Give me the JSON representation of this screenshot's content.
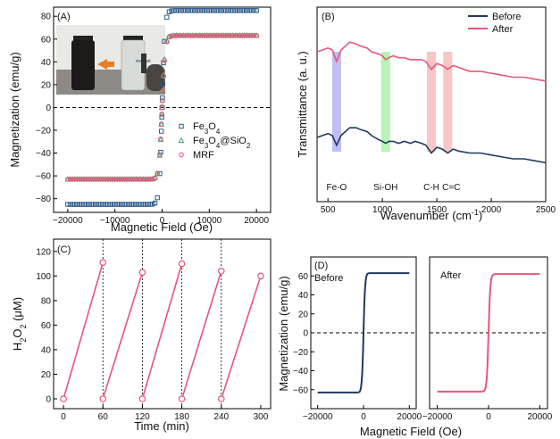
{
  "chart_data": [
    {
      "panel": "(A)",
      "type": "scatter",
      "xlabel": "Magnetic Field (Oe)",
      "ylabel": "Magnetization (emu/g)",
      "xlim": [
        -23000,
        23000
      ],
      "ylim": [
        -92,
        88
      ],
      "xticks": [
        -20000,
        -10000,
        0,
        10000,
        20000
      ],
      "yticks": [
        -80,
        -60,
        -40,
        -20,
        0,
        20,
        40,
        60,
        80
      ],
      "legend_position": "center-right",
      "inset": {
        "description_label": "magnet"
      },
      "series": [
        {
          "name": "Fe3O4",
          "marker": "square",
          "color": "#2f5d8a",
          "saturation": 85,
          "half_field": 300
        },
        {
          "name": "Fe3O4@SiO2",
          "marker": "triangle",
          "color": "#3cb371",
          "saturation": 63,
          "half_field": 300
        },
        {
          "name": "MRF",
          "marker": "circle",
          "color": "#e8557a",
          "saturation": 63,
          "half_field": 300
        }
      ]
    },
    {
      "panel": "(B)",
      "type": "line",
      "xlabel": "Wavenumber (cm-1)",
      "ylabel": "Transmittance (a. u.)",
      "xlim": [
        400,
        2500
      ],
      "xticks": [
        500,
        1000,
        1500,
        2000,
        2500
      ],
      "legend_position": "top-right",
      "bands": [
        {
          "label": "Fe-O",
          "center": 580,
          "color": "#a9a9f0"
        },
        {
          "label": "Si-OH",
          "center": 1030,
          "color": "#9ff09f"
        },
        {
          "label": "C-H",
          "center": 1450,
          "color": "#f5b3b3"
        },
        {
          "label": "C=C",
          "center": 1600,
          "color": "#f5b3b3"
        }
      ],
      "series": [
        {
          "name": "Before",
          "color": "#1f3a5f",
          "x": [
            400,
            450,
            500,
            540,
            580,
            620,
            660,
            700,
            760,
            800,
            860,
            900,
            960,
            1000,
            1030,
            1060,
            1100,
            1150,
            1200,
            1260,
            1300,
            1360,
            1400,
            1450,
            1500,
            1550,
            1600,
            1650,
            1700,
            1800,
            1900,
            2000,
            2100,
            2200,
            2300,
            2400,
            2500
          ],
          "y": [
            0.33,
            0.34,
            0.35,
            0.34,
            0.29,
            0.34,
            0.36,
            0.38,
            0.38,
            0.37,
            0.36,
            0.34,
            0.32,
            0.31,
            0.3,
            0.31,
            0.31,
            0.3,
            0.31,
            0.3,
            0.31,
            0.3,
            0.29,
            0.25,
            0.28,
            0.27,
            0.25,
            0.27,
            0.26,
            0.25,
            0.25,
            0.24,
            0.23,
            0.22,
            0.22,
            0.21,
            0.2
          ]
        },
        {
          "name": "After",
          "color": "#e8557a",
          "x": [
            400,
            450,
            500,
            540,
            580,
            620,
            660,
            700,
            760,
            800,
            860,
            900,
            960,
            1000,
            1030,
            1060,
            1100,
            1150,
            1200,
            1260,
            1300,
            1360,
            1400,
            1450,
            1500,
            1550,
            1600,
            1650,
            1700,
            1800,
            1900,
            2000,
            2100,
            2200,
            2300,
            2400,
            2500
          ],
          "y": [
            0.77,
            0.78,
            0.79,
            0.78,
            0.72,
            0.78,
            0.8,
            0.82,
            0.81,
            0.8,
            0.79,
            0.77,
            0.76,
            0.75,
            0.73,
            0.74,
            0.75,
            0.74,
            0.74,
            0.73,
            0.73,
            0.73,
            0.72,
            0.68,
            0.71,
            0.7,
            0.68,
            0.7,
            0.69,
            0.67,
            0.67,
            0.66,
            0.65,
            0.64,
            0.64,
            0.63,
            0.62
          ]
        }
      ]
    },
    {
      "panel": "(C)",
      "type": "line",
      "xlabel": "Time (min)",
      "ylabel": "H2O2 (μM)",
      "xlim": [
        -15,
        315
      ],
      "ylim": [
        -8,
        130
      ],
      "xticks": [
        0,
        60,
        120,
        180,
        240,
        300
      ],
      "yticks": [
        0,
        20,
        40,
        60,
        80,
        100,
        120
      ],
      "color": "#e8557a",
      "cycle_markers": [
        60,
        120,
        180,
        240
      ],
      "segments": [
        {
          "x": [
            0,
            60
          ],
          "y": [
            0,
            111
          ]
        },
        {
          "x": [
            60,
            120
          ],
          "y": [
            0,
            103
          ]
        },
        {
          "x": [
            120,
            180
          ],
          "y": [
            0,
            110
          ]
        },
        {
          "x": [
            180,
            240
          ],
          "y": [
            0,
            104
          ]
        },
        {
          "x": [
            240,
            300
          ],
          "y": [
            0,
            100
          ]
        }
      ]
    },
    {
      "panel": "(D)",
      "type": "line",
      "xlabel": "Magnetic Field (Oe)",
      "ylabel": "Magnetization (emu/g)",
      "subplots": [
        {
          "label": "Before",
          "color": "#1f3a5f",
          "saturation": 63,
          "xlim": [
            -23000,
            23000
          ],
          "ylim": [
            -80,
            80
          ],
          "xticks": [
            -20000,
            0,
            20000
          ],
          "yticks": [
            -60,
            -40,
            -20,
            0,
            20,
            40,
            60
          ]
        },
        {
          "label": "After",
          "color": "#e8557a",
          "saturation": 62,
          "xlim": [
            -23000,
            23000
          ],
          "ylim": [
            -80,
            80
          ],
          "xticks": [
            -20000,
            0,
            20000
          ]
        }
      ]
    }
  ]
}
